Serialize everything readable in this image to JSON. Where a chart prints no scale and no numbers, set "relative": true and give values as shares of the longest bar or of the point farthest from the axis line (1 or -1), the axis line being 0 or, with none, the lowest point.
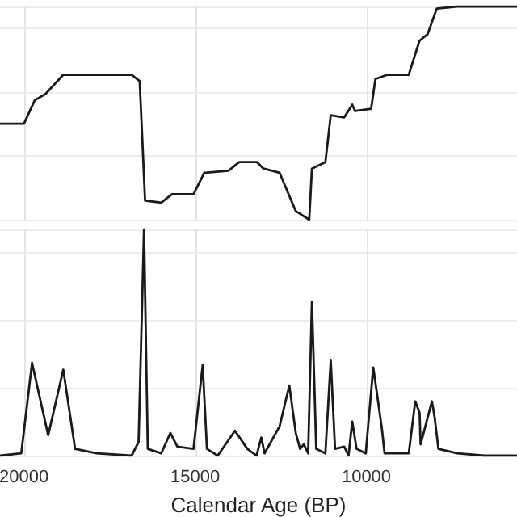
{
  "chart_data": [
    {
      "type": "line",
      "relative": true,
      "xlim": [
        20700,
        5600
      ],
      "xticks": [
        20000,
        15000,
        10000
      ],
      "tick_labels": false,
      "grid": true,
      "marker": "none",
      "line_style": "solid",
      "series": [
        {
          "color": "#1a1a1a",
          "x": [
            20700,
            20000,
            19686,
            19371,
            18852,
            16856,
            16620,
            16463,
            15991,
            15677,
            15048,
            14734,
            14026,
            13712,
            13193,
            13005,
            12533,
            12297,
            12061,
            11668,
            11590,
            11197,
            11040,
            10647,
            10411,
            10332,
            9861,
            9735,
            9389,
            8761,
            8446,
            8211,
            7943,
            7346,
            5616
          ],
          "values": [
            0.45,
            0.45,
            0.56,
            0.59,
            0.68,
            0.68,
            0.65,
            0.09,
            0.08,
            0.12,
            0.12,
            0.22,
            0.23,
            0.27,
            0.27,
            0.24,
            0.22,
            0.13,
            0.04,
            0,
            0.24,
            0.27,
            0.49,
            0.48,
            0.54,
            0.51,
            0.52,
            0.66,
            0.68,
            0.68,
            0.84,
            0.87,
            0.99,
            1.0,
            1.0
          ]
        }
      ]
    },
    {
      "type": "line",
      "relative": true,
      "xlim": [
        20700,
        5600
      ],
      "xticks": [
        20000,
        15000,
        10000
      ],
      "tick_labels": "x",
      "xlabel": "Calendar Age (BP)",
      "grid": true,
      "marker": "none",
      "line_style": "solid",
      "series": [
        {
          "color": "#1a1a1a",
          "x": [
            20700,
            20079,
            19764,
            19293,
            18852,
            18507,
            17878,
            16856,
            16652,
            16494,
            16384,
            15991,
            15724,
            15520,
            15048,
            14781,
            14655,
            14341,
            13838,
            13476,
            13209,
            13067,
            12973,
            12533,
            12250,
            12061,
            11936,
            11826,
            11700,
            11590,
            11464,
            11197,
            11040,
            10914,
            10647,
            10521,
            10411,
            10286,
            10018,
            9798,
            9547,
            9468,
            8761,
            8572,
            8446,
            8415,
            8085,
            8006,
            7896,
            7346,
            6559,
            5616
          ],
          "values": [
            0,
            0.01,
            0.41,
            0.09,
            0.38,
            0.03,
            0.01,
            0,
            0.06,
            1.0,
            0.03,
            0.01,
            0.1,
            0.04,
            0.03,
            0.4,
            0.03,
            0,
            0.11,
            0.03,
            0,
            0.08,
            0.01,
            0.13,
            0.31,
            0.1,
            0.03,
            0.05,
            0.01,
            0.68,
            0.03,
            0.01,
            0.42,
            0.03,
            0.04,
            0,
            0.15,
            0.03,
            0.01,
            0.39,
            0.12,
            0.01,
            0.01,
            0.24,
            0.19,
            0.05,
            0.24,
            0.17,
            0.03,
            0.01,
            0,
            0
          ]
        }
      ]
    }
  ]
}
